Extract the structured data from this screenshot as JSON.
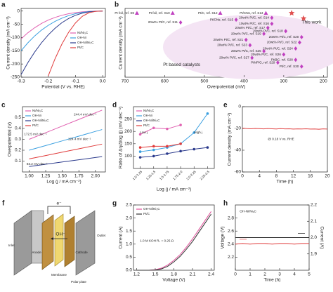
{
  "chart_data": [
    {
      "type": "line",
      "panel_label": "a",
      "xlabel": "Potential (V vs. RHE)",
      "ylabel": "Current density (mA cm⁻²)",
      "x": [
        -0.3,
        -0.275,
        -0.25,
        -0.225,
        -0.2,
        -0.175,
        -0.15,
        -0.125,
        -0.1,
        -0.075,
        -0.05,
        -0.025,
        0
      ],
      "xlim": [
        -0.3,
        0.01
      ],
      "xticks": [
        -0.3,
        -0.2,
        -0.1,
        {
          "value": 0,
          "label": "0.0"
        }
      ],
      "ylim": [
        -250,
        10
      ],
      "yticks": [
        0,
        -50,
        -100,
        -150,
        -200,
        -250
      ],
      "legend": "center right",
      "series": [
        {
          "name": "Ni/Ni₃C",
          "color": "#e060b0",
          "values": [
            -105,
            -82,
            -63,
            -47,
            -34,
            -24,
            -16,
            -10,
            -6,
            -3,
            -1,
            -0.3,
            0
          ]
        },
        {
          "name": "OH-Ni",
          "color": "#3ca0e0",
          "values": [
            -150,
            -120,
            -94,
            -72,
            -54,
            -39,
            -27,
            -17,
            -10,
            -5,
            -2,
            -0.5,
            0
          ]
        },
        {
          "name": "OH-Ni/Ni₃C",
          "color": "#2b3a8c",
          "values": [
            -240,
            -195,
            -155,
            -120,
            -90,
            -65,
            -44,
            -28,
            -16,
            -8,
            -3,
            -1,
            0
          ]
        },
        {
          "name": "Pt/C",
          "color": "#e03c3c",
          "values": [
            null,
            null,
            null,
            null,
            -245,
            -180,
            -125,
            -80,
            -45,
            -20,
            -6,
            -1,
            0
          ]
        }
      ]
    },
    {
      "type": "scatter",
      "panel_label": "b",
      "xlabel": "Overpotential (mV)",
      "ylabel": "Current density (mA cm⁻²)",
      "xlim": [
        700,
        190
      ],
      "xticks": [
        700,
        600,
        500,
        400,
        300,
        200
      ],
      "ylim": [
        0,
        10.3
      ],
      "x": [
        670,
        580,
        460,
        345,
        280,
        250,
        560,
        330,
        420,
        330,
        340,
        295,
        350,
        255,
        395,
        260,
        385,
        270,
        350,
        300,
        380,
        270,
        315,
        255
      ],
      "values": [
        9.6,
        9.6,
        9.6,
        9.6,
        9.6,
        8.8,
        8.2,
        8.9,
        8.6,
        8.0,
        7.4,
        6.9,
        6.5,
        6.0,
        5.6,
        5.2,
        4.8,
        4.3,
        3.9,
        3.4,
        2.9,
        2.6,
        2.2,
        1.6
      ],
      "point_labels": [
        "Pt foil, ref. S9",
        "Pt foil, ref. S10",
        "Pt/C, ref. S12",
        "Pt/CNs, ref. S13",
        null,
        null,
        "20wt% Pt/C, ref. S11",
        "20wt% Pt/C, ref. S14",
        "Pt/CNs, ref. S15",
        "10wt% Pt/C, ref. S16",
        "20wt% Pt/C, ref. S17",
        "20wt% Pt/C, ref. S18",
        "20wt% Pt/C, ref. S19",
        "20wt% Pt/C, ref. S20",
        "20wt% Pt/C, ref. S21",
        "20wt% Pt/C, ref. S22",
        "20wt% Pt/C, ref. S23",
        "20wt% Pt/C, ref. S24",
        "20wt% Pt/C, ref. S25",
        "20wt% Pt/C, ref. S26",
        "20wt% Pt/C, ref. S27",
        "Pt@C, ref. S28",
        "PtNP/G, ref. S29",
        "Pt/C, ref. S30"
      ],
      "marker_shapes": [
        "triangle",
        "triangle",
        "triangle",
        "triangle",
        "star",
        "star",
        "diamond",
        "diamond",
        "diamond",
        "diamond",
        "diamond",
        "diamond",
        "diamond",
        "diamond",
        "diamond",
        "diamond",
        "diamond",
        "diamond",
        "diamond",
        "diamond",
        "diamond",
        "diamond",
        "diamond",
        "diamond"
      ],
      "colors": {
        "triangle": "#c040c0",
        "diamond": "#c040c0",
        "star": "#e05050"
      },
      "annotations": [
        "Pt based catalysts",
        "This work"
      ]
    },
    {
      "type": "line",
      "panel_label": "c",
      "xlabel": "Log (j / mA cm⁻²)",
      "ylabel": "Overpotential (V)",
      "x": [
        1.0,
        1.25,
        1.5,
        1.75,
        2.0,
        2.1
      ],
      "xlim": [
        0.9,
        2.15
      ],
      "xticks": [
        {
          "value": 1,
          "label": "1.00"
        },
        1.25,
        {
          "value": 1.5,
          "label": "1.50"
        },
        1.75,
        {
          "value": 2,
          "label": "2.00"
        }
      ],
      "ylim": [
        0,
        0.6
      ],
      "yticks": [
        0.1,
        0.2,
        0.3,
        0.4,
        0.5
      ],
      "legend": "upper left",
      "series": [
        {
          "name": "Ni/Ni₃C",
          "color": "#e060b0",
          "values": [
            0.3,
            0.361,
            0.422,
            0.483,
            0.544,
            0.568
          ]
        },
        {
          "name": "OH-Ni",
          "color": "#3ca0e0",
          "values": [
            0.2,
            0.243,
            0.286,
            0.329,
            0.373,
            0.39
          ]
        },
        {
          "name": "OH-Ni/Ni₃C",
          "color": "#2b3a8c",
          "values": [
            0.05,
            0.071,
            0.092,
            0.112,
            0.133,
            0.141
          ]
        },
        {
          "name": "Pt/C",
          "color": "#e03c3c",
          "values": [
            0.12,
            0.151,
            0.182,
            0.213,
            0.244,
            0.256
          ]
        }
      ],
      "annotations": [
        "244.4 mV dec⁻¹",
        "172.5 mV dec⁻¹",
        "124.4 mV dec⁻¹",
        "83.2 mV dec⁻¹"
      ]
    },
    {
      "type": "line",
      "panel_label": "d",
      "xlabel": "Log (j / mA cm⁻²)",
      "ylabel": "Ratio of Δη/Δlog (j) (mV dec⁻¹)",
      "categories": [
        "1.0-1.25",
        "1.25-1.5",
        "1.5-1.75",
        "1.75-2.0",
        "2.0-2.25",
        "2.25-2.5"
      ],
      "ylim": [
        50,
        300
      ],
      "yticks": [
        100,
        150,
        200,
        250
      ],
      "legend": "upper left",
      "markers": true,
      "series": [
        {
          "name": "Ni/Ni₃C",
          "color": "#e060b0",
          "values": [
            188,
            214,
            210,
            226,
            null,
            null
          ]
        },
        {
          "name": "OH-Ni",
          "color": "#3ca0e0",
          "values": [
            118,
            125,
            135,
            150,
            195,
            272
          ]
        },
        {
          "name": "OH-Ni/Ni₃C",
          "color": "#2b3a8c",
          "values": [
            95,
            100,
            110,
            120,
            128,
            135
          ]
        },
        {
          "name": "Pt/C",
          "color": "#e03c3c",
          "values": [
            135,
            140,
            140,
            150,
            null,
            null
          ]
        }
      ],
      "annotations": [
        "Low j",
        "High j"
      ]
    },
    {
      "type": "line",
      "panel_label": "e",
      "xlabel": "Time (h)",
      "ylabel": "Current density (mA cm⁻²)",
      "x": [
        0,
        1,
        2,
        3,
        4,
        5,
        6,
        7,
        8,
        9,
        10,
        11,
        12,
        13,
        14,
        15,
        16,
        17,
        18,
        19,
        20
      ],
      "xlim": [
        0,
        20
      ],
      "xticks": [
        0,
        4,
        8,
        12,
        16,
        20
      ],
      "ylim": [
        -60,
        0
      ],
      "yticks": [
        0,
        -20,
        -40,
        -60
      ],
      "color": "#e03c3c",
      "values": [
        -19.6,
        -20.1,
        -20.3,
        -20.0,
        -20.2,
        -20.4,
        -20.1,
        -20.3,
        -20.5,
        -20.2,
        -20.4,
        -20.3,
        -20.6,
        -20.4,
        -20.5,
        -20.3,
        -20.6,
        -20.5,
        -20.7,
        -20.4,
        -20.6
      ],
      "annotations": [
        "@ 0.18 V vs. RHE"
      ]
    },
    {
      "type": "line",
      "panel_label": "g",
      "xlabel": "Voltage (V)",
      "ylabel": "Current (A)",
      "x": [
        1.2,
        1.4,
        1.5,
        1.6,
        1.7,
        1.8,
        1.9,
        2.0,
        2.1,
        2.2,
        2.3,
        2.4
      ],
      "xlim": [
        1.15,
        2.45
      ],
      "xticks": [
        1.2,
        1.5,
        1.8,
        2.1,
        2.4
      ],
      "ylim": [
        0,
        2.5
      ],
      "yticks": [
        {
          "value": 0,
          "label": "0.0"
        },
        0.5,
        {
          "value": 1,
          "label": "1.0"
        },
        1.5,
        {
          "value": 2,
          "label": "2.0"
        },
        2.5
      ],
      "legend": "upper left",
      "series": [
        {
          "name": "OH-Ni/Ni₃C",
          "color": "#e0509a",
          "values": [
            0,
            0,
            0.02,
            0.08,
            0.2,
            0.38,
            0.6,
            0.88,
            1.2,
            1.55,
            1.9,
            2.25
          ]
        },
        {
          "name": "Pt/C",
          "color": "#333333",
          "values": [
            0,
            0,
            0.01,
            0.05,
            0.15,
            0.32,
            0.53,
            0.8,
            1.1,
            1.45,
            1.8,
            2.15
          ]
        }
      ],
      "annotations": [
        "1.0 M KOH  Rₛ = 0.25 Ω"
      ]
    },
    {
      "type": "line",
      "panel_label": "h",
      "xlabel": "Time (h)",
      "ylabel": "Voltage (V)",
      "y2label": "Current (A)",
      "x": [
        0,
        0.5,
        1,
        1.5,
        2,
        2.5,
        3,
        3.5,
        4,
        4.5,
        5
      ],
      "xlim": [
        0,
        5
      ],
      "xticks": [
        0,
        1,
        2,
        3,
        4,
        5
      ],
      "ylim": [
        2.0,
        3.0
      ],
      "yticks": [
        2.2,
        2.4,
        2.6,
        2.8
      ],
      "y2lim": [
        1.8,
        2.2
      ],
      "y2ticks": [
        1.9,
        {
          "value": 2,
          "label": "2.0"
        },
        2.1,
        2.2
      ],
      "series": [
        {
          "color": "#e03c3c",
          "values": [
            2.4,
            2.41,
            2.4,
            2.41,
            2.41,
            2.4,
            2.41,
            2.41,
            2.4,
            2.41,
            2.41
          ]
        },
        {
          "color": "#222222",
          "axis": "y2",
          "values": [
            2,
            2,
            2,
            2,
            2,
            2,
            2,
            2,
            2,
            2,
            2
          ]
        }
      ],
      "annotations": [
        "OH-Ni/Ni₃C"
      ]
    }
  ],
  "diagram": {
    "panel_label": "f",
    "labels": {
      "electron": "e⁻",
      "hydroxide": "OH⁻",
      "anode": "Anode",
      "cathode": "Cathode",
      "membrane": "Membrane",
      "polar_plate": "Polar plate",
      "inlet": "Inlet",
      "outlet": "Outlet"
    }
  }
}
